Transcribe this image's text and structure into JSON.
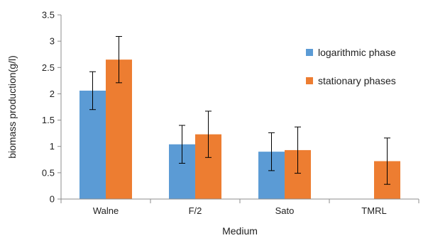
{
  "chart_data": {
    "type": "bar",
    "categories": [
      "Walne",
      "F/2",
      "Sato",
      "TMRL"
    ],
    "series": [
      {
        "name": "logarithmic phase",
        "color": "#5b9bd5",
        "values": [
          2.06,
          1.04,
          0.9,
          null
        ],
        "error": [
          0.36,
          0.36,
          0.36,
          null
        ]
      },
      {
        "name": "stationary phases",
        "color": "#ed7d31",
        "values": [
          2.65,
          1.23,
          0.93,
          0.72
        ],
        "error": [
          0.44,
          0.44,
          0.44,
          0.44
        ]
      }
    ],
    "xlabel": "Medium",
    "ylabel": "biomass production(g/l)",
    "ylim": [
      0,
      3.5
    ],
    "yticks": [
      "0",
      "0.5",
      "1",
      "1.5",
      "2",
      "2.5",
      "3",
      "3.5"
    ],
    "grid": false,
    "legend": "right"
  }
}
